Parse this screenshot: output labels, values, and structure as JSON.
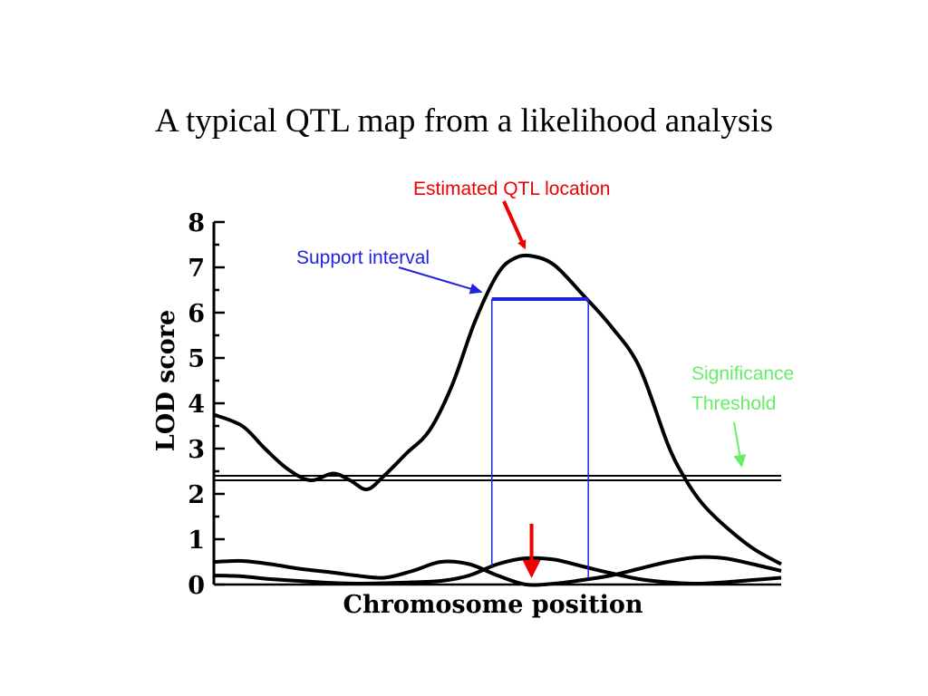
{
  "slide": {
    "title": "A typical QTL map from a likelihood analysis"
  },
  "chart_data": {
    "type": "line",
    "xlabel": "Chromosome position",
    "ylabel": "LOD score",
    "ylim": [
      0,
      8
    ],
    "xlim": [
      0,
      100
    ],
    "yticks": [
      0,
      1,
      2,
      3,
      4,
      5,
      6,
      7,
      8
    ],
    "grid": false,
    "colors": {
      "curve": "#000000",
      "estimated": "#ee0000",
      "support": "#2222dd",
      "threshold": "#66ee66"
    },
    "series": [
      {
        "x": [
          0,
          5,
          9,
          13,
          17,
          21,
          24,
          27,
          30,
          34,
          38,
          42,
          46,
          50,
          53,
          56,
          60,
          65,
          70,
          75,
          80,
          83,
          86,
          90,
          95,
          100
        ],
        "values": [
          3.75,
          3.5,
          3.0,
          2.55,
          2.3,
          2.45,
          2.3,
          2.1,
          2.4,
          2.9,
          3.4,
          4.4,
          5.8,
          6.85,
          7.2,
          7.25,
          7.05,
          6.4,
          5.7,
          4.8,
          3.1,
          2.35,
          1.8,
          1.3,
          0.8,
          0.45
        ]
      },
      {
        "x": [
          0,
          5,
          10,
          15,
          20,
          25,
          30,
          35,
          40,
          45,
          50,
          55,
          60,
          65,
          70,
          75,
          80,
          85,
          90,
          95,
          100
        ],
        "values": [
          0.5,
          0.52,
          0.45,
          0.35,
          0.28,
          0.2,
          0.15,
          0.3,
          0.5,
          0.45,
          0.2,
          0.0,
          0.02,
          0.1,
          0.2,
          0.35,
          0.5,
          0.6,
          0.58,
          0.45,
          0.3
        ]
      },
      {
        "x": [
          0,
          5,
          10,
          15,
          20,
          25,
          30,
          35,
          40,
          45,
          50,
          55,
          60,
          65,
          70,
          75,
          80,
          85,
          90,
          95,
          100
        ],
        "values": [
          0.2,
          0.18,
          0.12,
          0.08,
          0.04,
          0.02,
          0.03,
          0.05,
          0.08,
          0.2,
          0.45,
          0.58,
          0.55,
          0.4,
          0.25,
          0.12,
          0.05,
          0.02,
          0.05,
          0.1,
          0.15
        ]
      }
    ],
    "threshold": {
      "value": 2.35,
      "label": [
        "Significance",
        "Threshold"
      ]
    },
    "support_interval": {
      "x_start": 49,
      "x_end": 66,
      "lod": 6.3,
      "label": "Support interval"
    },
    "estimated_location": {
      "x": 56,
      "lod": 7.25,
      "label": "Estimated QTL location"
    }
  }
}
